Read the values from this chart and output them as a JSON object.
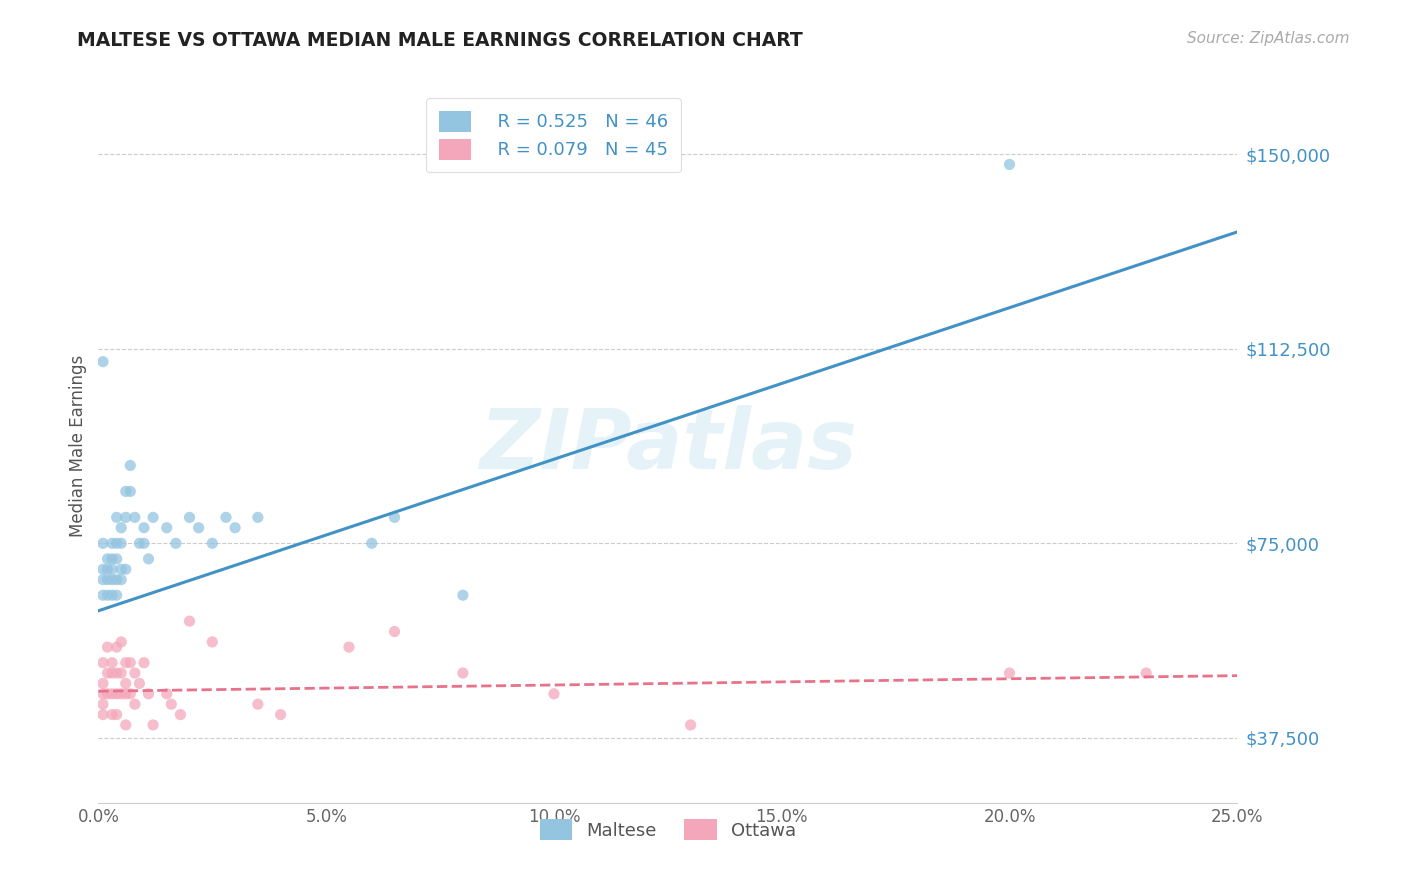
{
  "title": "MALTESE VS OTTAWA MEDIAN MALE EARNINGS CORRELATION CHART",
  "source": "Source: ZipAtlas.com",
  "ylabel": "Median Male Earnings",
  "xlim": [
    0.0,
    0.25
  ],
  "ylim": [
    25000,
    162500
  ],
  "yticks": [
    37500,
    75000,
    112500,
    150000
  ],
  "ytick_labels": [
    "$37,500",
    "$75,000",
    "$112,500",
    "$150,000"
  ],
  "xticks": [
    0.0,
    0.05,
    0.1,
    0.15,
    0.2,
    0.25
  ],
  "xtick_labels": [
    "0.0%",
    "5.0%",
    "10.0%",
    "15.0%",
    "20.0%",
    "25.0%"
  ],
  "blue_color": "#93c4e0",
  "pink_color": "#f4a7bb",
  "blue_line_color": "#4292c6",
  "pink_line_color": "#e8728a",
  "legend_r1": "R = 0.525",
  "legend_n1": "N = 46",
  "legend_r2": "R = 0.079",
  "legend_n2": "N = 45",
  "maltese_label": "Maltese",
  "ottawa_label": "Ottawa",
  "blue_line_x0": 0.0,
  "blue_line_y0": 62000,
  "blue_line_x1": 0.25,
  "blue_line_y1": 135000,
  "pink_line_x0": 0.0,
  "pink_line_y0": 46500,
  "pink_line_x1": 0.25,
  "pink_line_y1": 49500,
  "watermark_text": "ZIPatlas",
  "background_color": "#ffffff",
  "grid_color": "#cccccc",
  "title_color": "#222222",
  "axis_label_color": "#555555",
  "ytick_color": "#4292c6",
  "xtick_color": "#666666",
  "blue_scatter_x": [
    0.001,
    0.001,
    0.001,
    0.001,
    0.001,
    0.002,
    0.002,
    0.002,
    0.002,
    0.003,
    0.003,
    0.003,
    0.003,
    0.003,
    0.004,
    0.004,
    0.004,
    0.004,
    0.004,
    0.005,
    0.005,
    0.005,
    0.005,
    0.006,
    0.006,
    0.006,
    0.007,
    0.007,
    0.008,
    0.009,
    0.01,
    0.01,
    0.011,
    0.012,
    0.015,
    0.017,
    0.02,
    0.022,
    0.025,
    0.028,
    0.03,
    0.035,
    0.06,
    0.065,
    0.08,
    0.2
  ],
  "blue_scatter_y": [
    110000,
    75000,
    70000,
    68000,
    65000,
    72000,
    70000,
    68000,
    65000,
    75000,
    72000,
    70000,
    68000,
    65000,
    80000,
    75000,
    72000,
    68000,
    65000,
    78000,
    75000,
    70000,
    68000,
    85000,
    80000,
    70000,
    90000,
    85000,
    80000,
    75000,
    78000,
    75000,
    72000,
    80000,
    78000,
    75000,
    80000,
    78000,
    75000,
    80000,
    78000,
    80000,
    75000,
    80000,
    65000,
    148000
  ],
  "pink_scatter_x": [
    0.001,
    0.001,
    0.001,
    0.001,
    0.001,
    0.002,
    0.002,
    0.002,
    0.003,
    0.003,
    0.003,
    0.003,
    0.004,
    0.004,
    0.004,
    0.004,
    0.005,
    0.005,
    0.005,
    0.006,
    0.006,
    0.006,
    0.006,
    0.007,
    0.007,
    0.008,
    0.008,
    0.009,
    0.01,
    0.011,
    0.012,
    0.015,
    0.016,
    0.018,
    0.02,
    0.025,
    0.035,
    0.04,
    0.055,
    0.065,
    0.08,
    0.1,
    0.13,
    0.2,
    0.23
  ],
  "pink_scatter_y": [
    52000,
    48000,
    46000,
    44000,
    42000,
    55000,
    50000,
    46000,
    52000,
    50000,
    46000,
    42000,
    55000,
    50000,
    46000,
    42000,
    56000,
    50000,
    46000,
    52000,
    48000,
    46000,
    40000,
    52000,
    46000,
    50000,
    44000,
    48000,
    52000,
    46000,
    40000,
    46000,
    44000,
    42000,
    60000,
    56000,
    44000,
    42000,
    55000,
    58000,
    50000,
    46000,
    40000,
    50000,
    50000
  ]
}
